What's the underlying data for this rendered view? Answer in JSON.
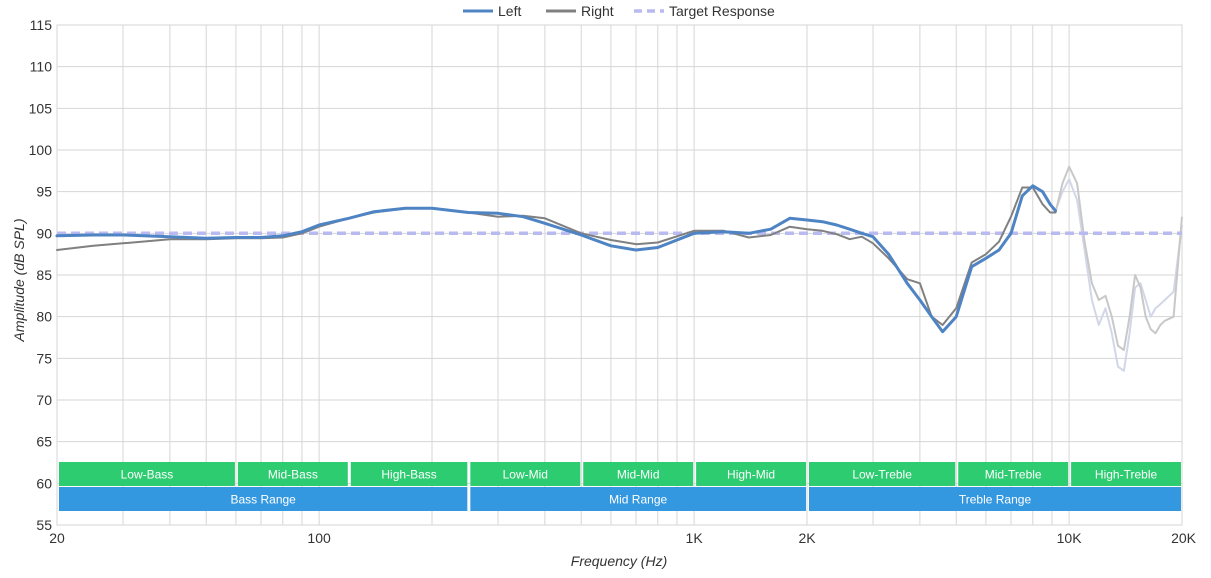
{
  "chart_data": {
    "type": "line",
    "xlabel": "Frequency (Hz)",
    "ylabel": "Amplitude (dB SPL)",
    "x_scale": "log",
    "xlim": [
      20,
      20000
    ],
    "ylim": [
      55,
      115
    ],
    "grid": true,
    "legend_position": "top-center",
    "x_ticks": [
      {
        "value": 20,
        "label": "20"
      },
      {
        "value": 100,
        "label": "100"
      },
      {
        "value": 1000,
        "label": "1K"
      },
      {
        "value": 2000,
        "label": "2K"
      },
      {
        "value": 10000,
        "label": "10K"
      },
      {
        "value": 20000,
        "label": "20K"
      }
    ],
    "y_ticks": [
      55,
      60,
      65,
      70,
      75,
      80,
      85,
      90,
      95,
      100,
      105,
      110,
      115
    ],
    "series": [
      {
        "name": "Left",
        "color": "#4f84c4",
        "style": "solid",
        "x": [
          20,
          25,
          30,
          40,
          50,
          60,
          70,
          80,
          90,
          100,
          120,
          140,
          170,
          200,
          250,
          300,
          350,
          400,
          500,
          600,
          700,
          800,
          1000,
          1200,
          1400,
          1600,
          1800,
          2000,
          2200,
          2400,
          2600,
          2800,
          3000,
          3300,
          3700,
          4000,
          4300,
          4600,
          5000,
          5500,
          6000,
          6500,
          7000,
          7500,
          8000,
          8500,
          8900,
          9200
        ],
        "y": [
          89.7,
          89.8,
          89.8,
          89.6,
          89.4,
          89.5,
          89.5,
          89.7,
          90.2,
          91.0,
          91.8,
          92.6,
          93.0,
          93.0,
          92.5,
          92.4,
          92.0,
          91.2,
          89.8,
          88.5,
          88.0,
          88.3,
          90.0,
          90.2,
          90.0,
          90.5,
          91.8,
          91.6,
          91.4,
          91.0,
          90.5,
          90.0,
          89.6,
          87.5,
          84.0,
          82.0,
          80.0,
          78.2,
          80.0,
          86.0,
          87.0,
          88.0,
          90.0,
          94.5,
          95.7,
          95.0,
          93.5,
          92.7
        ]
      },
      {
        "name": "Right",
        "color": "#808080",
        "style": "solid",
        "x": [
          20,
          25,
          30,
          40,
          50,
          60,
          70,
          80,
          90,
          100,
          120,
          140,
          170,
          200,
          250,
          300,
          350,
          400,
          500,
          600,
          700,
          800,
          1000,
          1200,
          1400,
          1600,
          1800,
          2000,
          2200,
          2400,
          2600,
          2800,
          3000,
          3300,
          3700,
          4000,
          4300,
          4600,
          5000,
          5500,
          6000,
          6500,
          7000,
          7500,
          8000,
          8500,
          8900,
          9200
        ],
        "y": [
          88.0,
          88.5,
          88.8,
          89.3,
          89.3,
          89.4,
          89.4,
          89.5,
          90.0,
          90.8,
          91.8,
          92.5,
          93.0,
          93.0,
          92.5,
          92.0,
          92.1,
          91.8,
          90.0,
          89.2,
          88.7,
          88.9,
          90.3,
          90.3,
          89.5,
          89.8,
          90.8,
          90.5,
          90.3,
          89.9,
          89.3,
          89.6,
          88.8,
          87.0,
          84.5,
          84.0,
          80.0,
          79.0,
          81.0,
          86.5,
          87.5,
          89.0,
          92.0,
          95.5,
          95.5,
          93.5,
          92.5,
          92.5
        ]
      },
      {
        "name": "Target Response",
        "color": "#b9baf0",
        "style": "dashed",
        "x": [
          20,
          20000
        ],
        "y": [
          90,
          90
        ]
      }
    ],
    "faded_series": [
      {
        "color": "#d3d6e8",
        "x": [
          9200,
          9600,
          10000,
          10500,
          11000,
          11500,
          12000,
          12500,
          13000,
          13500,
          14000,
          14500,
          15000,
          15500,
          16000,
          16500,
          17000,
          17500,
          18000,
          19000,
          20000
        ],
        "y": [
          92.7,
          95.0,
          96.5,
          94.0,
          88.0,
          82.0,
          79.0,
          81.0,
          78.0,
          74.0,
          73.5,
          78.0,
          83.5,
          84.0,
          82.0,
          80.0,
          81.0,
          81.5,
          82.0,
          83.0,
          91.0
        ]
      },
      {
        "color": "#c8c8c8",
        "x": [
          9200,
          9600,
          10000,
          10500,
          11000,
          11500,
          12000,
          12500,
          13000,
          13500,
          14000,
          14500,
          15000,
          15500,
          16000,
          16500,
          17000,
          17500,
          18000,
          19000,
          20000
        ],
        "y": [
          92.5,
          96.0,
          98.0,
          96.0,
          89.0,
          84.0,
          82.0,
          82.5,
          80.0,
          76.5,
          76.0,
          80.0,
          85.0,
          83.5,
          80.0,
          78.5,
          78.0,
          79.0,
          79.5,
          80.0,
          92.0
        ]
      }
    ],
    "bands": [
      {
        "label": "Low-Bass",
        "from": 20,
        "to": 60,
        "row": 0,
        "color": "#2ecc71"
      },
      {
        "label": "Mid-Bass",
        "from": 60,
        "to": 120,
        "row": 0,
        "color": "#2ecc71"
      },
      {
        "label": "High-Bass",
        "from": 120,
        "to": 250,
        "row": 0,
        "color": "#2ecc71"
      },
      {
        "label": "Low-Mid",
        "from": 250,
        "to": 500,
        "row": 0,
        "color": "#2ecc71"
      },
      {
        "label": "Mid-Mid",
        "from": 500,
        "to": 1000,
        "row": 0,
        "color": "#2ecc71"
      },
      {
        "label": "High-Mid",
        "from": 1000,
        "to": 2000,
        "row": 0,
        "color": "#2ecc71"
      },
      {
        "label": "Low-Treble",
        "from": 2000,
        "to": 5000,
        "row": 0,
        "color": "#2ecc71"
      },
      {
        "label": "Mid-Treble",
        "from": 5000,
        "to": 10000,
        "row": 0,
        "color": "#2ecc71"
      },
      {
        "label": "High-Treble",
        "from": 10000,
        "to": 20000,
        "row": 0,
        "color": "#2ecc71"
      },
      {
        "label": "Bass Range",
        "from": 20,
        "to": 250,
        "row": 1,
        "color": "#3498e0"
      },
      {
        "label": "Mid Range",
        "from": 250,
        "to": 2000,
        "row": 1,
        "color": "#3498e0"
      },
      {
        "label": "Treble Range",
        "from": 2000,
        "to": 20000,
        "row": 1,
        "color": "#3498e0"
      }
    ]
  }
}
